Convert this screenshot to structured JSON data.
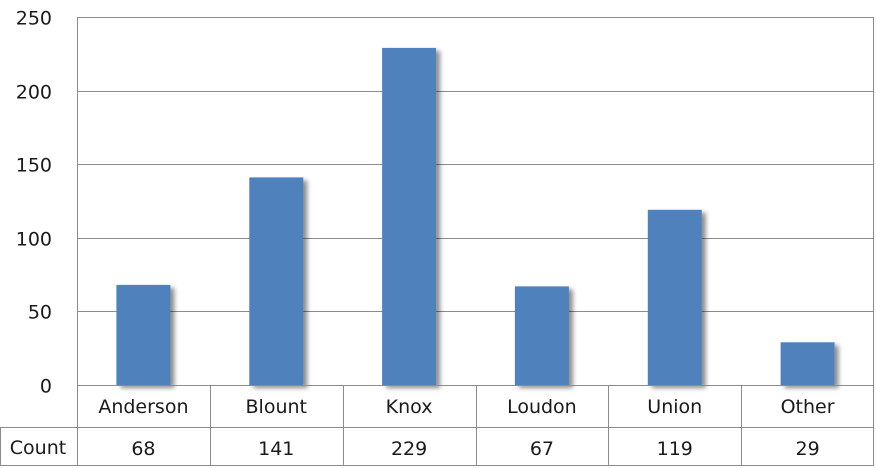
{
  "chart_data": {
    "type": "bar",
    "title": "",
    "xlabel": "",
    "ylabel": "",
    "categories": [
      "Anderson",
      "Blount",
      "Knox",
      "Loudon",
      "Union",
      "Other"
    ],
    "series": [
      {
        "name": "Count",
        "values": [
          68,
          141,
          229,
          67,
          119,
          29
        ]
      }
    ],
    "ylim": [
      0,
      250
    ],
    "yticks": [
      0,
      50,
      100,
      150,
      200,
      250
    ],
    "grid": true,
    "legend": "none",
    "data_table": {
      "row_header": "Count",
      "values": [
        "68",
        "141",
        "229",
        "67",
        "119",
        "29"
      ]
    },
    "colors": {
      "bar": "#4f81bd",
      "grid": "#8c8c8c",
      "border": "#8c8c8c"
    }
  }
}
